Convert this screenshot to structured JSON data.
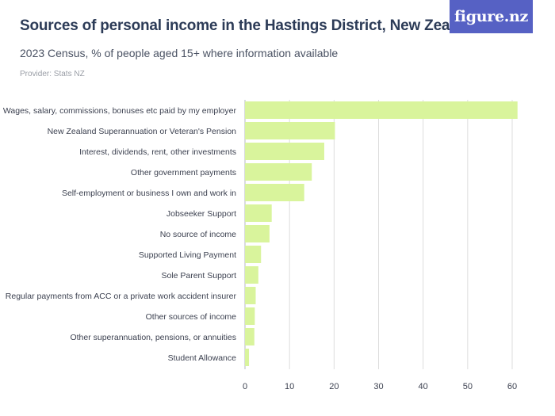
{
  "header": {
    "title": "Sources of personal income in the Hastings District, New Zealand",
    "subtitle": "2023 Census, % of people aged 15+ where information available",
    "provider": "Provider: Stats NZ",
    "logo_text": "figure.nz"
  },
  "colors": {
    "bar": "#d9f49c",
    "logo_bg": "#5661c4",
    "grid": "#dddddd",
    "title": "#2c3b57"
  },
  "chart_data": {
    "type": "bar",
    "orientation": "horizontal",
    "title": "Sources of personal income in the Hastings District, New Zealand",
    "subtitle": "2023 Census, % of people aged 15+ where information available",
    "xlabel": "",
    "ylabel": "",
    "xlim": [
      0,
      60
    ],
    "x_ticks": [
      0,
      10,
      20,
      30,
      40,
      50,
      60
    ],
    "grid": true,
    "legend": "none",
    "categories": [
      "Wages, salary, commissions, bonuses etc paid by my employer",
      "New Zealand Superannuation or Veteran's Pension",
      "Interest, dividends, rent, other investments",
      "Other government payments",
      "Self-employment or business I own and work in",
      "Jobseeker Support",
      "No source of income",
      "Supported Living Payment",
      "Sole Parent Support",
      "Regular payments from ACC or a private work accident insurer",
      "Other sources of income",
      "Other superannuation, pensions, or annuities",
      "Student Allowance"
    ],
    "values": [
      61.2,
      20.2,
      17.8,
      15.0,
      13.3,
      6.0,
      5.5,
      3.6,
      3.0,
      2.4,
      2.2,
      2.1,
      0.9
    ]
  }
}
